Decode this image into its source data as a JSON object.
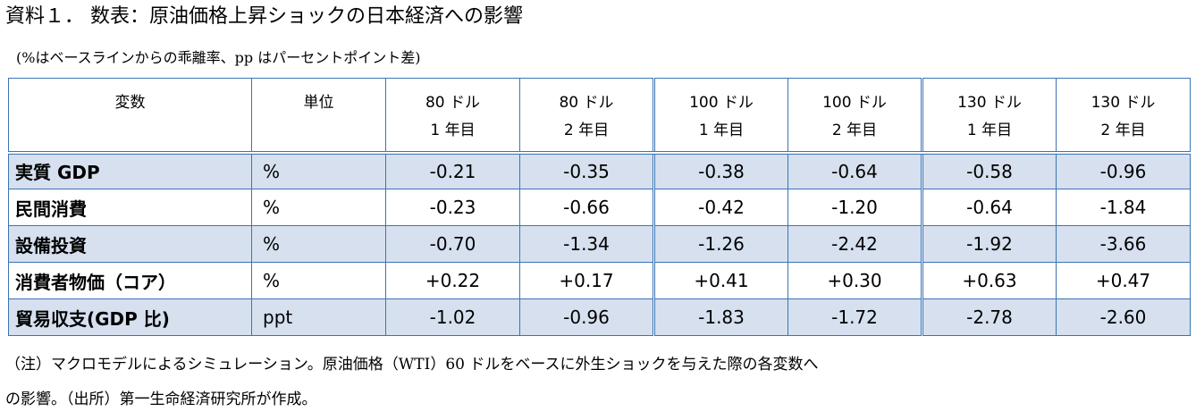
{
  "title": "資料１． 数表：原油価格上昇ショックの日本経済への影響",
  "note": "(%はベースラインからの乖離率、pp はパーセントポイント差)",
  "table": {
    "headers": [
      {
        "line1": "変数",
        "line2": ""
      },
      {
        "line1": "単位",
        "line2": ""
      },
      {
        "line1": "80 ドル",
        "line2": "1 年目"
      },
      {
        "line1": "80 ドル",
        "line2": "2 年目"
      },
      {
        "line1": "100 ドル",
        "line2": "1 年目"
      },
      {
        "line1": "100 ドル",
        "line2": "2 年目"
      },
      {
        "line1": "130 ドル",
        "line2": "1 年目"
      },
      {
        "line1": "130 ドル",
        "line2": "2 年目"
      }
    ],
    "rows": [
      {
        "variable": "実質 GDP",
        "unit": "%",
        "values": [
          "-0.21",
          "-0.35",
          "-0.38",
          "-0.64",
          "-0.58",
          "-0.96"
        ]
      },
      {
        "variable": "民間消費",
        "unit": "%",
        "values": [
          "-0.23",
          "-0.66",
          "-0.42",
          "-1.20",
          "-0.64",
          "-1.84"
        ]
      },
      {
        "variable": "設備投資",
        "unit": "%",
        "values": [
          "-0.70",
          "-1.34",
          "-1.26",
          "-2.42",
          "-1.92",
          "-3.66"
        ]
      },
      {
        "variable": "消費者物価（コア）",
        "unit": "%",
        "values": [
          "+0.22",
          "+0.17",
          "+0.41",
          "+0.30",
          "+0.63",
          "+0.47"
        ]
      },
      {
        "variable": "貿易収支(GDP 比)",
        "unit": "ppt",
        "values": [
          "-1.02",
          "-0.96",
          "-1.83",
          "-1.72",
          "-2.78",
          "-2.60"
        ]
      }
    ]
  },
  "footnote": {
    "line1": "（注）マクロモデルによるシミュレーション。原油価格（WTI）60 ドルをベースに外生ショックを与えた際の各変数へ",
    "line2": "の影響。（出所）第一生命経済研究所が作成。"
  },
  "colors": {
    "border": "#3b74b5",
    "shaded_row": "#d6e0ef"
  }
}
